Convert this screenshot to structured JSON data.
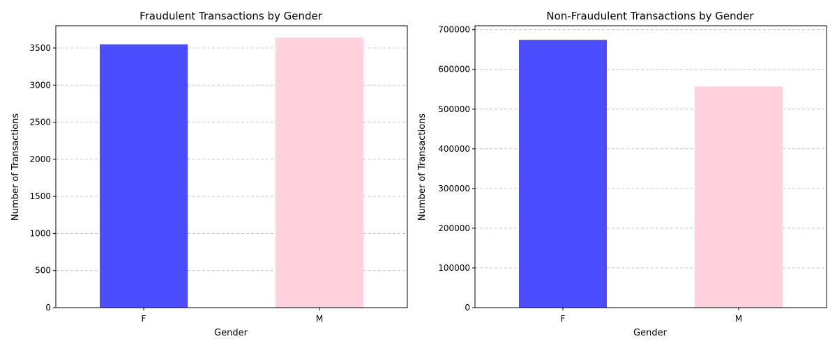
{
  "chart_data": [
    {
      "type": "bar",
      "title": "Fraudulent Transactions by Gender",
      "xlabel": "Gender",
      "ylabel": "Number of Transactions",
      "categories": [
        "F",
        "M"
      ],
      "values": [
        3550,
        3640
      ],
      "colors": [
        "#4c4cff",
        "#ffd1dc"
      ],
      "ylim": [
        0,
        3800
      ],
      "yticks": [
        0,
        500,
        1000,
        1500,
        2000,
        2500,
        3000,
        3500
      ],
      "grid": "y-dashed",
      "legend": "none"
    },
    {
      "type": "bar",
      "title": "Non-Fraudulent Transactions by Gender",
      "xlabel": "Gender",
      "ylabel": "Number of Transactions",
      "categories": [
        "F",
        "M"
      ],
      "values": [
        674500,
        557000
      ],
      "colors": [
        "#4c4cff",
        "#ffd1dc"
      ],
      "ylim": [
        0,
        710000
      ],
      "yticks": [
        0,
        100000,
        200000,
        300000,
        400000,
        500000,
        600000,
        700000
      ],
      "grid": "y-dashed",
      "legend": "none"
    }
  ]
}
